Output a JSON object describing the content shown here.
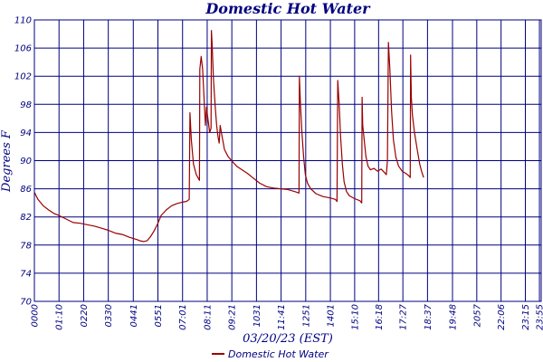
{
  "colors": {
    "axis": "#000080",
    "grid": "#000080",
    "series": "#990000",
    "background": "#ffffff"
  },
  "chart_data": {
    "type": "line",
    "title": "Domestic Hot Water",
    "xlabel": "03/20/23 (EST)",
    "ylabel": "Degrees F",
    "grid": true,
    "legend_position": "bottom-center",
    "ylim": [
      70,
      110
    ],
    "yticks": [
      70,
      74,
      78,
      82,
      86,
      90,
      94,
      98,
      102,
      106,
      110
    ],
    "xlim": [
      0,
      1440
    ],
    "xticks": [
      {
        "label": "0000",
        "minutes": 0
      },
      {
        "label": "01:10",
        "minutes": 70
      },
      {
        "label": "0220",
        "minutes": 140
      },
      {
        "label": "0330",
        "minutes": 210
      },
      {
        "label": "0441",
        "minutes": 281
      },
      {
        "label": "0551",
        "minutes": 351
      },
      {
        "label": "07:01",
        "minutes": 421
      },
      {
        "label": "08:11",
        "minutes": 491
      },
      {
        "label": "09:21",
        "minutes": 561
      },
      {
        "label": "1031",
        "minutes": 631
      },
      {
        "label": "11:41",
        "minutes": 701
      },
      {
        "label": "1251",
        "minutes": 771
      },
      {
        "label": "1401",
        "minutes": 841
      },
      {
        "label": "15:10",
        "minutes": 910
      },
      {
        "label": "16:18",
        "minutes": 978
      },
      {
        "label": "17:27",
        "minutes": 1047
      },
      {
        "label": "18:37",
        "minutes": 1117
      },
      {
        "label": "19:48",
        "minutes": 1188
      },
      {
        "label": "2057",
        "minutes": 1257
      },
      {
        "label": "22:06",
        "minutes": 1326
      },
      {
        "label": "23:15",
        "minutes": 1395
      },
      {
        "label": "23:55",
        "minutes": 1435
      }
    ],
    "series": [
      {
        "name": "Domestic Hot Water",
        "points": [
          [
            0,
            85.5
          ],
          [
            10,
            84.5
          ],
          [
            25,
            83.6
          ],
          [
            40,
            83.0
          ],
          [
            55,
            82.5
          ],
          [
            70,
            82.2
          ],
          [
            90,
            81.7
          ],
          [
            110,
            81.2
          ],
          [
            130,
            81.1
          ],
          [
            150,
            80.9
          ],
          [
            170,
            80.7
          ],
          [
            190,
            80.4
          ],
          [
            210,
            80.1
          ],
          [
            230,
            79.7
          ],
          [
            250,
            79.5
          ],
          [
            270,
            79.1
          ],
          [
            290,
            78.8
          ],
          [
            300,
            78.6
          ],
          [
            310,
            78.5
          ],
          [
            320,
            78.6
          ],
          [
            330,
            79.2
          ],
          [
            340,
            80.0
          ],
          [
            350,
            81.0
          ],
          [
            360,
            82.2
          ],
          [
            375,
            83.0
          ],
          [
            390,
            83.6
          ],
          [
            405,
            83.9
          ],
          [
            420,
            84.1
          ],
          [
            432,
            84.2
          ],
          [
            440,
            84.5
          ],
          [
            442,
            96.8
          ],
          [
            446,
            93.0
          ],
          [
            452,
            89.5
          ],
          [
            460,
            88.0
          ],
          [
            469,
            87.2
          ],
          [
            470,
            103.0
          ],
          [
            474,
            104.8
          ],
          [
            478,
            103.0
          ],
          [
            482,
            99.0
          ],
          [
            486,
            95.0
          ],
          [
            489,
            97.6
          ],
          [
            493,
            96.0
          ],
          [
            498,
            94.0
          ],
          [
            502,
            94.6
          ],
          [
            503,
            108.5
          ],
          [
            505,
            106.5
          ],
          [
            509,
            101.5
          ],
          [
            514,
            97.5
          ],
          [
            518,
            95.0
          ],
          [
            522,
            93.3
          ],
          [
            525,
            92.5
          ],
          [
            528,
            95.0
          ],
          [
            532,
            93.8
          ],
          [
            540,
            91.6
          ],
          [
            550,
            90.6
          ],
          [
            560,
            90.0
          ],
          [
            575,
            89.2
          ],
          [
            590,
            88.7
          ],
          [
            605,
            88.2
          ],
          [
            620,
            87.6
          ],
          [
            640,
            86.8
          ],
          [
            660,
            86.3
          ],
          [
            680,
            86.1
          ],
          [
            700,
            86.0
          ],
          [
            720,
            85.9
          ],
          [
            740,
            85.6
          ],
          [
            752,
            85.4
          ],
          [
            753,
            102.0
          ],
          [
            756,
            98.0
          ],
          [
            760,
            94.0
          ],
          [
            765,
            90.5
          ],
          [
            770,
            88.0
          ],
          [
            776,
            86.8
          ],
          [
            785,
            86.0
          ],
          [
            800,
            85.3
          ],
          [
            820,
            84.9
          ],
          [
            840,
            84.7
          ],
          [
            855,
            84.5
          ],
          [
            860,
            84.2
          ],
          [
            862,
            101.4
          ],
          [
            866,
            98.0
          ],
          [
            870,
            93.5
          ],
          [
            875,
            89.5
          ],
          [
            880,
            87.0
          ],
          [
            887,
            85.6
          ],
          [
            895,
            85.0
          ],
          [
            910,
            84.6
          ],
          [
            925,
            84.3
          ],
          [
            930,
            84.0
          ],
          [
            931,
            99.0
          ],
          [
            933,
            95.0
          ],
          [
            937,
            93.0
          ],
          [
            942,
            90.6
          ],
          [
            948,
            89.2
          ],
          [
            955,
            88.7
          ],
          [
            965,
            88.9
          ],
          [
            975,
            88.5
          ],
          [
            985,
            88.8
          ],
          [
            995,
            88.3
          ],
          [
            1000,
            88.0
          ],
          [
            1003,
            90.0
          ],
          [
            1006,
            106.8
          ],
          [
            1010,
            103.0
          ],
          [
            1015,
            97.0
          ],
          [
            1020,
            93.0
          ],
          [
            1027,
            90.5
          ],
          [
            1035,
            89.2
          ],
          [
            1045,
            88.5
          ],
          [
            1058,
            88.1
          ],
          [
            1065,
            87.8
          ],
          [
            1068,
            87.6
          ],
          [
            1069,
            105.0
          ],
          [
            1071,
            99.0
          ],
          [
            1074,
            96.5
          ],
          [
            1080,
            94.0
          ],
          [
            1088,
            91.5
          ],
          [
            1095,
            89.5
          ],
          [
            1100,
            88.5
          ],
          [
            1106,
            87.6
          ]
        ]
      }
    ]
  }
}
